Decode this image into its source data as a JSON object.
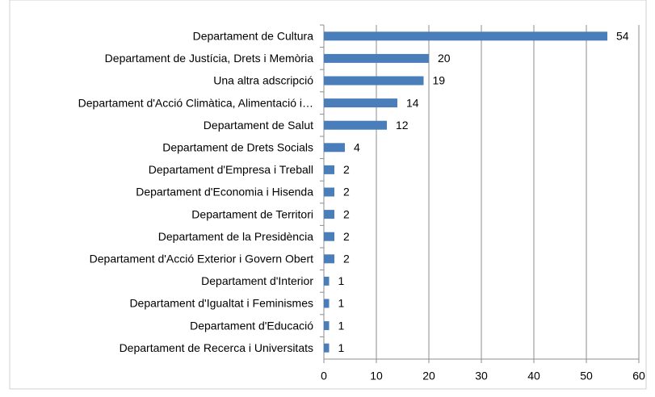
{
  "chart_data": {
    "type": "bar",
    "orientation": "horizontal",
    "categories": [
      "Departament de Cultura",
      "Departament de Justícia, Drets i Memòria",
      "Una altra adscripció",
      "Departament d'Acció Climàtica, Alimentació i…",
      "Departament de Salut",
      "Departament de Drets Socials",
      "Departament d'Empresa i Treball",
      "Departament d'Economia i Hisenda",
      "Departament de Territori",
      "Departament de la Presidència",
      "Departament d'Acció Exterior i Govern Obert",
      "Departament d'Interior",
      "Departament d'Igualtat i Feminismes",
      "Departament d'Educació",
      "Departament de Recerca i Universitats"
    ],
    "values": [
      54,
      20,
      19,
      14,
      12,
      4,
      2,
      2,
      2,
      2,
      2,
      1,
      1,
      1,
      1
    ],
    "color": "#4a7ebb",
    "xlim": [
      0,
      60
    ],
    "xticks": [
      0,
      10,
      20,
      30,
      40,
      50,
      60
    ],
    "grid": true
  }
}
